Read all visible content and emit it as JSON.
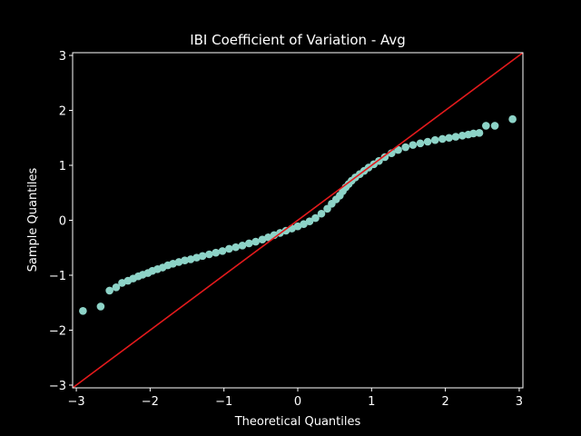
{
  "chart_data": {
    "type": "scatter",
    "title": "IBI Coefficient of Variation - Avg",
    "xlabel": "Theoretical Quantiles",
    "ylabel": "Sample Quantiles",
    "xlim": [
      -3.05,
      3.05
    ],
    "ylim": [
      -3.05,
      3.05
    ],
    "xticks": [
      -3,
      -2,
      -1,
      0,
      1,
      2,
      3
    ],
    "yticks": [
      -3,
      -2,
      -1,
      0,
      1,
      2,
      3
    ],
    "tick_labels": [
      "−3",
      "−2",
      "−1",
      "0",
      "1",
      "2",
      "3"
    ],
    "grid": false,
    "legend": "none",
    "colors": {
      "background": "#000000",
      "points": "#8dd3c7",
      "reference_line": "#e41a1c",
      "axes": "#ffffff"
    },
    "reference_line": {
      "x": [
        -3.05,
        3.05
      ],
      "y": [
        -3.05,
        3.05
      ]
    },
    "series": [
      {
        "x": [
          -2.91,
          -2.67,
          -2.55,
          -2.46,
          -2.38,
          -2.3,
          -2.23,
          -2.16,
          -2.1,
          -2.03,
          -1.97,
          -1.9,
          -1.83,
          -1.76,
          -1.69,
          -1.61,
          -1.53,
          -1.45,
          -1.37,
          -1.29,
          -1.2,
          -1.11,
          -1.02,
          -0.93,
          -0.84,
          -0.75,
          -0.66,
          -0.57,
          -0.48,
          -0.4,
          -0.32,
          -0.24,
          -0.16,
          -0.08,
          0.0,
          0.08,
          0.16,
          0.24,
          0.32,
          0.4,
          0.46,
          0.52,
          0.57,
          0.61,
          0.65,
          0.69,
          0.73,
          0.78,
          0.84,
          0.9,
          0.96,
          1.03,
          1.1,
          1.18,
          1.27,
          1.36,
          1.46,
          1.56,
          1.66,
          1.76,
          1.86,
          1.96,
          2.05,
          2.14,
          2.23,
          2.31,
          2.38,
          2.46,
          2.55,
          2.67,
          2.91
        ],
        "y": [
          -1.65,
          -1.57,
          -1.28,
          -1.22,
          -1.14,
          -1.1,
          -1.06,
          -1.02,
          -0.99,
          -0.96,
          -0.92,
          -0.89,
          -0.86,
          -0.82,
          -0.79,
          -0.76,
          -0.73,
          -0.71,
          -0.68,
          -0.65,
          -0.62,
          -0.59,
          -0.56,
          -0.52,
          -0.49,
          -0.46,
          -0.42,
          -0.39,
          -0.35,
          -0.31,
          -0.27,
          -0.23,
          -0.19,
          -0.15,
          -0.11,
          -0.07,
          -0.02,
          0.04,
          0.12,
          0.21,
          0.3,
          0.38,
          0.45,
          0.53,
          0.6,
          0.66,
          0.72,
          0.78,
          0.84,
          0.9,
          0.96,
          1.02,
          1.08,
          1.15,
          1.22,
          1.28,
          1.33,
          1.37,
          1.4,
          1.43,
          1.46,
          1.48,
          1.5,
          1.52,
          1.54,
          1.56,
          1.58,
          1.59,
          1.72,
          1.72,
          1.84
        ]
      }
    ]
  }
}
